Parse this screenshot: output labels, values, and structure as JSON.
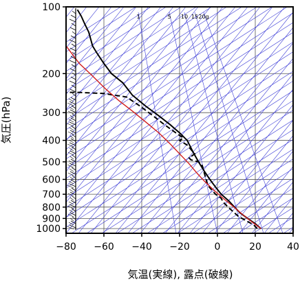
{
  "chart_data": {
    "type": "line",
    "title": "",
    "xlabel": "気温(実線), 露点(破線)",
    "ylabel": "気圧(hPa)",
    "xlim": [
      -80,
      40
    ],
    "ylim": [
      1050,
      100
    ],
    "yscale": "log",
    "x_ticks": [
      -80,
      -60,
      -40,
      -20,
      0,
      20,
      40
    ],
    "y_ticks": [
      100,
      200,
      300,
      400,
      500,
      600,
      700,
      800,
      900,
      1000
    ],
    "mixing_ratio_labels": [
      "1",
      "5",
      "10",
      "15",
      "20g"
    ],
    "series": [
      {
        "style": "solid",
        "color": "#000000",
        "points": [
          [
            23,
            1000
          ],
          [
            20,
            950
          ],
          [
            16,
            900
          ],
          [
            12,
            850
          ],
          [
            9,
            800
          ],
          [
            6,
            750
          ],
          [
            2,
            700
          ],
          [
            -1,
            650
          ],
          [
            -4,
            600
          ],
          [
            -7,
            550
          ],
          [
            -10,
            500
          ],
          [
            -13,
            450
          ],
          [
            -16,
            400
          ],
          [
            -20,
            370
          ],
          [
            -25,
            340
          ],
          [
            -31,
            310
          ],
          [
            -38,
            280
          ],
          [
            -45,
            250
          ],
          [
            -50,
            220
          ],
          [
            -56,
            200
          ],
          [
            -60,
            180
          ],
          [
            -64,
            160
          ],
          [
            -66,
            150
          ],
          [
            -68,
            130
          ],
          [
            -70,
            120
          ],
          [
            -72,
            110
          ],
          [
            -74,
            103
          ]
        ]
      },
      {
        "style": "dashed",
        "color": "#000000",
        "points": [
          [
            21,
            1000
          ],
          [
            19,
            960
          ],
          [
            16,
            930
          ],
          [
            13,
            900
          ],
          [
            11,
            880
          ],
          [
            9,
            850
          ],
          [
            7,
            820
          ],
          [
            5,
            790
          ],
          [
            3,
            760
          ],
          [
            2,
            730
          ],
          [
            -1,
            700
          ],
          [
            -3,
            670
          ],
          [
            -5,
            640
          ],
          [
            -6,
            600
          ],
          [
            -7,
            560
          ],
          [
            -8,
            520
          ],
          [
            -10,
            500
          ],
          [
            -14,
            490
          ],
          [
            -15,
            480
          ],
          [
            -12,
            460
          ],
          [
            -14,
            440
          ],
          [
            -16,
            420
          ],
          [
            -20,
            400
          ],
          [
            -18,
            390
          ],
          [
            -22,
            370
          ],
          [
            -28,
            340
          ],
          [
            -34,
            310
          ],
          [
            -41,
            280
          ],
          [
            -48,
            255
          ],
          [
            -60,
            246
          ],
          [
            -74,
            243
          ],
          [
            -80,
            243
          ]
        ]
      },
      {
        "style": "solid",
        "color": "#d11c1c",
        "points": [
          [
            23,
            1000
          ],
          [
            18,
            930
          ],
          [
            13,
            860
          ],
          [
            8,
            790
          ],
          [
            3,
            730
          ],
          [
            -2,
            670
          ],
          [
            -7,
            610
          ],
          [
            -11,
            560
          ],
          [
            -15,
            510
          ],
          [
            -20,
            460
          ],
          [
            -25,
            415
          ],
          [
            -31,
            370
          ],
          [
            -38,
            330
          ],
          [
            -45,
            295
          ],
          [
            -52,
            265
          ],
          [
            -59,
            235
          ],
          [
            -66,
            205
          ],
          [
            -73,
            180
          ],
          [
            -80,
            150
          ]
        ]
      }
    ]
  }
}
